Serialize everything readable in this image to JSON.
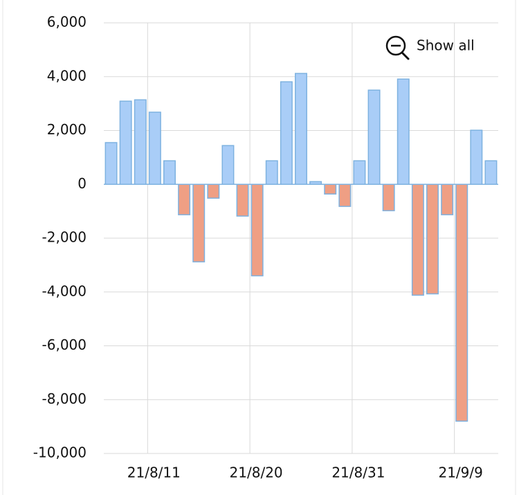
{
  "chart_data": {
    "type": "bar",
    "categories": [
      null,
      null,
      null,
      "21/8/11",
      null,
      null,
      null,
      null,
      null,
      null,
      "21/8/20",
      null,
      null,
      null,
      null,
      null,
      null,
      "21/8/31",
      null,
      null,
      null,
      null,
      null,
      null,
      "21/9/9",
      null,
      null
    ],
    "values": [
      1550,
      3090,
      3140,
      2680,
      875,
      -1130,
      -2880,
      -515,
      1440,
      -1180,
      -3400,
      875,
      3810,
      4120,
      100,
      -360,
      -820,
      875,
      3500,
      -980,
      3910,
      -4120,
      -4070,
      -1130,
      -8800,
      2010,
      875
    ],
    "positive_color": "#a9cdf7",
    "negative_color": "#ef9f84",
    "bar_edge_color": "#7eb2e0",
    "ylim": [
      -10000,
      6000
    ],
    "yticks": [
      {
        "value": -10000,
        "label": "-10,000"
      },
      {
        "value": -8000,
        "label": "-8,000"
      },
      {
        "value": -6000,
        "label": "-6,000"
      },
      {
        "value": -4000,
        "label": "-4,000"
      },
      {
        "value": -2000,
        "label": "-2,000"
      },
      0,
      {
        "value": 2000,
        "label": "2,000"
      },
      {
        "value": 4000,
        "label": "4,000"
      },
      {
        "value": 6000,
        "label": "6,000"
      }
    ],
    "grid": true
  },
  "controls": {
    "show_all": "Show all"
  }
}
